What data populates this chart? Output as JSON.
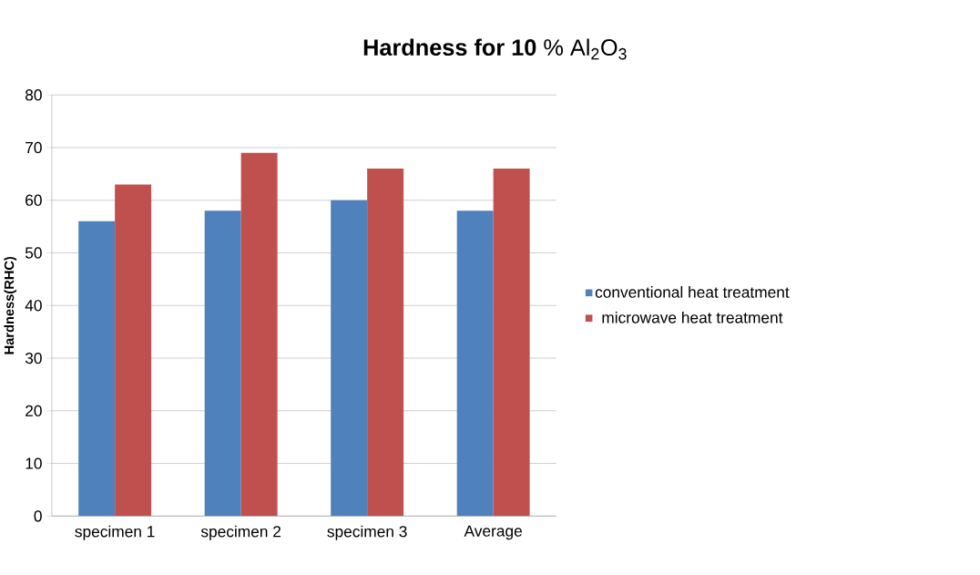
{
  "chart_data": {
    "type": "bar",
    "title": "**Hardness for 10** % Al$_{2}$O$_{3}$",
    "ylabel": "Hardness(RHC)",
    "categories": [
      "specimen 1",
      "specimen 2",
      "specimen 3",
      "Average"
    ],
    "series": [
      {
        "name": "conventional heat treatment",
        "color": "#4f81bd",
        "values": [
          56,
          58,
          60,
          58
        ]
      },
      {
        "name": "microwave heat treatment",
        "color": "#c0504d",
        "values": [
          63,
          69,
          66,
          66
        ]
      }
    ],
    "ylim": [
      0,
      80
    ],
    "yticks": [
      0,
      10,
      20,
      30,
      40,
      50,
      60,
      70,
      80
    ],
    "grid": "y",
    "legend": "right"
  }
}
